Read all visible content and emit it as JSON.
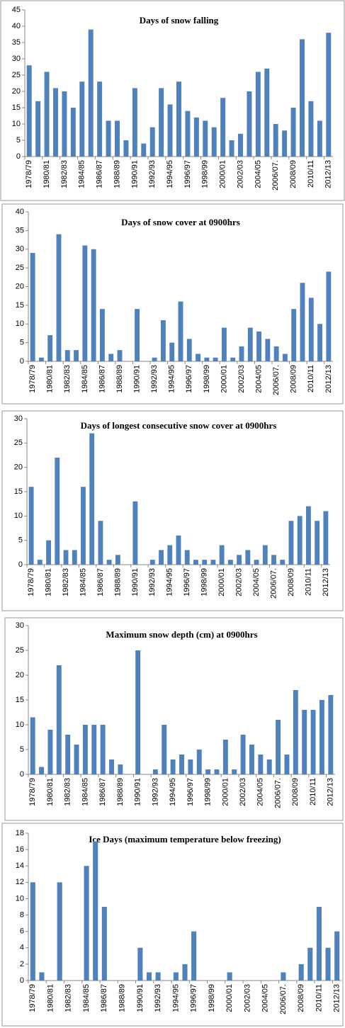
{
  "chart_data": [
    {
      "type": "bar",
      "title": "Days of snow falling",
      "color": "#4f81bd",
      "categories": [
        "1978/79",
        null,
        "1980/81",
        null,
        "1982/83",
        null,
        "1984/85",
        null,
        "1986/87",
        null,
        "1988/89",
        null,
        "1990/91",
        null,
        "1992/93",
        null,
        "1994/95",
        null,
        "1996/97",
        null,
        "1998/99",
        null,
        "2000/01",
        null,
        "2002/03",
        null,
        "2004/05",
        null,
        "2006/07.",
        null,
        "2008/09",
        null,
        "2010/11",
        null,
        "2012/13"
      ],
      "values": [
        28,
        17,
        26,
        21,
        20,
        15,
        23,
        39,
        23,
        11,
        11,
        5,
        21,
        4,
        9,
        21,
        16,
        23,
        14,
        12,
        11,
        9,
        18,
        5,
        7,
        20,
        26,
        27,
        10,
        8,
        15,
        36,
        17,
        11,
        38
      ],
      "ylim": [
        0,
        45
      ],
      "yticks": [
        0,
        5,
        10,
        15,
        20,
        25,
        30,
        35,
        40,
        45
      ]
    },
    {
      "type": "bar",
      "title": "Days of snow cover at 0900hrs",
      "color": "#4f81bd",
      "categories": [
        "1978/79",
        null,
        "1980/81",
        null,
        "1982/83",
        null,
        "1984/85",
        null,
        "1986/87",
        null,
        "1988/89",
        null,
        "1990/91",
        null,
        "1992/93",
        null,
        "1994/95",
        null,
        "1996/97",
        null,
        "1998/99",
        null,
        "2000/01",
        null,
        "2002/03",
        null,
        "2004/05",
        null,
        "2006/07.",
        null,
        "2008/09",
        null,
        "2010/11",
        null,
        "2012/13"
      ],
      "values": [
        29,
        1,
        7,
        34,
        3,
        3,
        31,
        30,
        14,
        2,
        3,
        0,
        14,
        0,
        1,
        11,
        5,
        16,
        6,
        2,
        1,
        1,
        9,
        1,
        4,
        9,
        8,
        6,
        4,
        2,
        14,
        21,
        17,
        10,
        24
      ],
      "ylim": [
        0,
        40
      ],
      "yticks": [
        0,
        5,
        10,
        15,
        20,
        25,
        30,
        35,
        40
      ]
    },
    {
      "type": "bar",
      "title": "Days of longest consecutive snow cover at 0900hrs",
      "color": "#4f81bd",
      "categories": [
        "1978/79",
        null,
        "1980/81",
        null,
        "1982/83",
        null,
        "1984/85",
        null,
        "1986/87",
        null,
        "1988/89",
        null,
        "1990/91",
        null,
        "1992/93",
        null,
        "1994/95",
        null,
        "1996/97",
        null,
        "1998/99",
        null,
        "2000/01",
        null,
        "2002/03",
        null,
        "2004/05",
        null,
        "2006/07.",
        null,
        "2008/09",
        null,
        "2010/11",
        null,
        "2012/13"
      ],
      "values": [
        16,
        1,
        5,
        22,
        3,
        3,
        16,
        27,
        9,
        1,
        2,
        0,
        13,
        0,
        1,
        3,
        4,
        6,
        3,
        1,
        1,
        1,
        4,
        1,
        2,
        3,
        1,
        4,
        2,
        1,
        9,
        10,
        12,
        9,
        11
      ],
      "ylim": [
        0,
        30
      ],
      "yticks": [
        0,
        5,
        10,
        15,
        20,
        25,
        30
      ]
    },
    {
      "type": "bar",
      "title": "Maximum snow depth (cm) at 0900hrs",
      "color": "#4f81bd",
      "categories": [
        "1978/79",
        null,
        "1980/81",
        null,
        "1982/83",
        null,
        "1984/85",
        null,
        "1986/87",
        null,
        "1988/89",
        null,
        "1990/91",
        null,
        "1992/93",
        null,
        "1994/95",
        null,
        "1996/97",
        null,
        "1998/99",
        null,
        "2000/01",
        null,
        "2002/03",
        null,
        "2004/05",
        null,
        "2006/07.",
        null,
        "2008/09",
        null,
        "2010/11",
        null,
        "2012/13"
      ],
      "values": [
        11.5,
        1.5,
        9,
        22,
        8,
        6,
        10,
        10,
        10,
        3,
        2,
        0,
        25,
        0,
        1,
        10,
        3,
        4,
        3,
        5,
        1,
        1,
        7,
        1,
        8,
        6,
        4,
        3,
        11,
        4,
        17,
        13,
        13,
        15,
        16
      ],
      "ylim": [
        0,
        30
      ],
      "yticks": [
        0,
        5,
        10,
        15,
        20,
        25,
        30
      ]
    },
    {
      "type": "bar",
      "title": "Ice Days  (maximum temperature below freezing)",
      "color": "#4f81bd",
      "categories": [
        "1978/79",
        null,
        "1980/81",
        null,
        "1982/83",
        null,
        "1984/85",
        null,
        "1986/87",
        null,
        "1988/89",
        null,
        "1990/91",
        null,
        "1992/93",
        null,
        "1994/95",
        null,
        "1996/97",
        null,
        "1998/99",
        null,
        "2000/01",
        null,
        "2002/03",
        null,
        "2004/05",
        null,
        "2006/07.",
        null,
        "2008/09",
        null,
        "2010/11",
        null,
        "2012/13"
      ],
      "values": [
        12,
        1,
        0,
        12,
        0,
        0,
        14,
        17,
        9,
        0,
        0,
        0,
        4,
        1,
        1,
        0,
        1,
        2,
        6,
        0,
        0,
        0,
        1,
        0,
        0,
        0,
        0,
        0,
        1,
        0,
        2,
        4,
        9,
        4,
        6
      ],
      "ylim": [
        0,
        18
      ],
      "yticks": [
        0,
        2,
        4,
        6,
        8,
        10,
        12,
        14,
        16,
        18
      ]
    }
  ]
}
